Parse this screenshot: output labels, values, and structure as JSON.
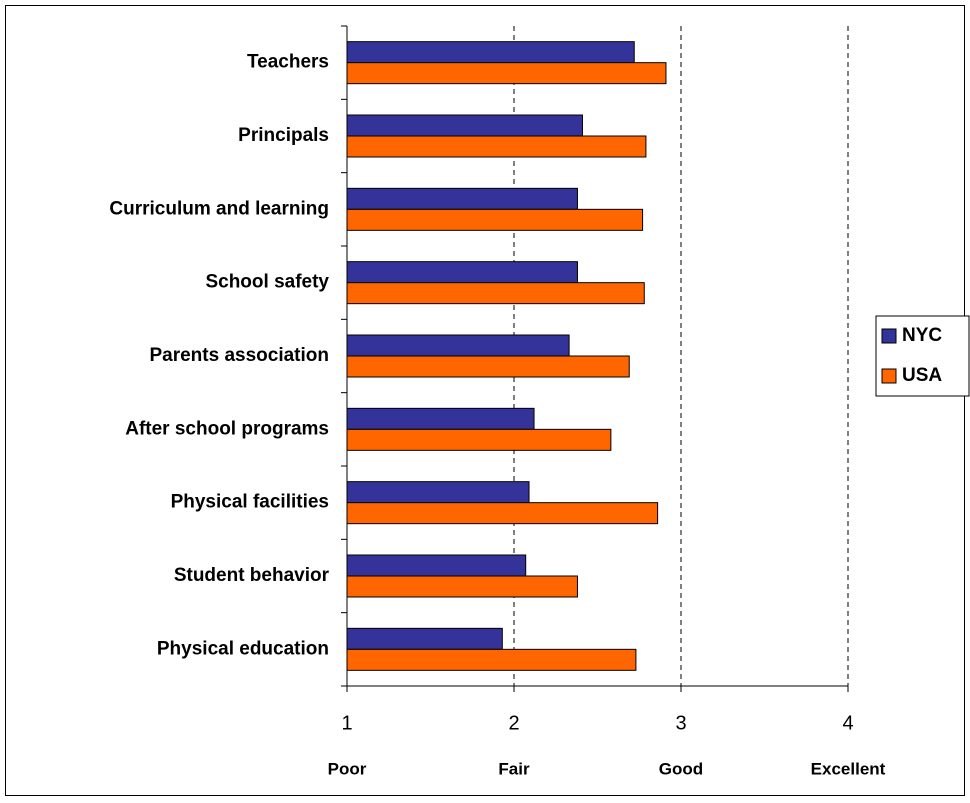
{
  "chart_data": {
    "type": "hbar",
    "categories": [
      "Teachers",
      "Principals",
      "Curriculum and learning",
      "School safety",
      "Parents association",
      "After school programs",
      "Physical facilities",
      "Student behavior",
      "Physical education"
    ],
    "series": [
      {
        "name": "NYC",
        "color": "#333399",
        "values": [
          2.72,
          2.41,
          2.38,
          2.38,
          2.33,
          2.12,
          2.09,
          2.07,
          1.93
        ]
      },
      {
        "name": "USA",
        "color": "#ff6600",
        "values": [
          2.91,
          2.79,
          2.77,
          2.78,
          2.69,
          2.58,
          2.86,
          2.38,
          2.73
        ]
      }
    ],
    "xlim": [
      1,
      4
    ],
    "xticks": [
      1,
      2,
      3,
      4
    ],
    "xtick_descriptions": [
      "Poor",
      "Fair",
      "Good",
      "Excellent"
    ],
    "grid": true,
    "legend": "right"
  }
}
